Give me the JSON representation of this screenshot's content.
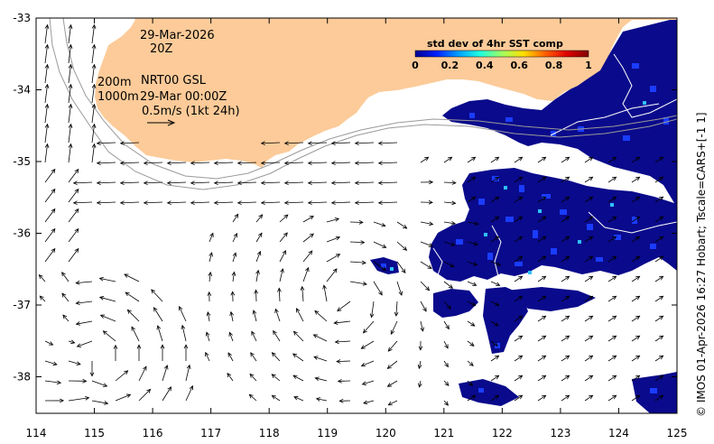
{
  "annotations": {
    "date": "29-Mar-2026",
    "time": "20Z",
    "iso_200": "200m",
    "iso_1000": "1000m",
    "current_product": "NRT00 GSL",
    "current_time": "29-Mar 00:00Z",
    "scale_label": "0.5m/s (1kt 24h)"
  },
  "colorbar": {
    "title": "std dev of 4hr SST comp",
    "ticks": [
      "0",
      "0.2",
      "0.4",
      "0.6",
      "0.8",
      "1"
    ],
    "colors": [
      "#00008f",
      "#0020ff",
      "#00a0ff",
      "#20ffdf",
      "#a0ff60",
      "#ffdf00",
      "#ff6000",
      "#df0000",
      "#800000"
    ]
  },
  "credit": "© IMOS 01-Apr-2026 16:27 Hobart; Tscale=CARS+[-1 1]",
  "axes": {
    "x_ticks": [
      "114",
      "115",
      "116",
      "117",
      "118",
      "119",
      "120",
      "121",
      "122",
      "123",
      "124",
      "125"
    ],
    "y_ticks": [
      "-33",
      "-34",
      "-35",
      "-36",
      "-37",
      "-38"
    ]
  },
  "colors": {
    "land": "#fccb99",
    "sst_main": "#0a0a8c",
    "sst_bright": "#1a3cff",
    "arrow": "#000000",
    "isobath": "#9a9a9a"
  }
}
